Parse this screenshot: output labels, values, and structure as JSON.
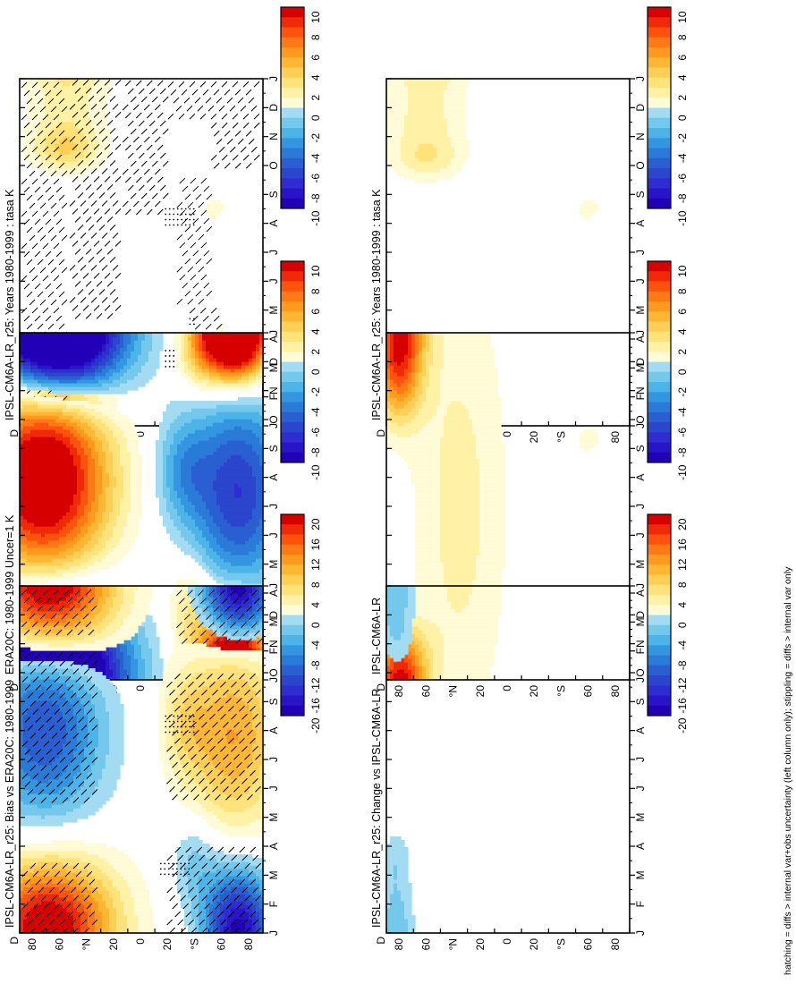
{
  "figure": {
    "footnote": "hatching = diffs > internal var+obs uncertainty (left column only); stippling = diffs > internal var only"
  },
  "colors": {
    "warm": [
      "#fffbd6",
      "#fff2a6",
      "#ffe27a",
      "#ffcf55",
      "#ffb733",
      "#ff9a1f",
      "#ff7a14",
      "#ff520d",
      "#f02a08",
      "#d60000"
    ],
    "cool": [
      "#a3dcf2",
      "#73c8ec",
      "#4db4e8",
      "#3496e0",
      "#2a7ad8",
      "#2a5fd2",
      "#2b45cc",
      "#2e2ed0",
      "#2a14c8",
      "#2200b8"
    ]
  },
  "chart_data": [
    {
      "type": "heatmap",
      "id": "p1",
      "title": "IPSL-CM6A-LR_r25: Years 1980-1999 : tasa K",
      "x_ticks": [
        "J",
        "F",
        "M",
        "A",
        "M",
        "J",
        "J",
        "A",
        "S",
        "O",
        "N",
        "D",
        "J"
      ],
      "y_ticks": [
        "80",
        "60",
        "°N",
        "20",
        "0",
        "20",
        "°S",
        "60",
        "80"
      ],
      "x_endlabel": "D",
      "colorbar_ticks": [
        "10",
        "8",
        "6",
        "4",
        "2",
        "0",
        "-2",
        "-4",
        "-6",
        "-8",
        "-10"
      ],
      "scale": 1,
      "regions": [
        {
          "lon": 0.2,
          "mon": 0.6,
          "slat": 0.13,
          "smon": 0.9,
          "v": 3.2
        },
        {
          "lon": 0.16,
          "mon": 1.6,
          "slat": 0.08,
          "smon": 0.9,
          "v": 1.6
        },
        {
          "lon": 0.19,
          "mon": 10.3,
          "slat": 0.11,
          "smon": 0.9,
          "v": 2.6
        },
        {
          "lon": 0.19,
          "mon": 9.5,
          "slat": 0.1,
          "smon": 0.5,
          "v": 2.4
        },
        {
          "lon": 0.8,
          "mon": 7.5,
          "slat": 0.035,
          "smon": 0.3,
          "v": 1.6
        },
        {
          "lon": 0.6,
          "mon": 7.6,
          "slat": 0.02,
          "smon": 0.2,
          "v": 1.0
        },
        {
          "lon": 0.83,
          "mon": 3.3,
          "slat": 0.02,
          "smon": 0.25,
          "v": 1.2
        }
      ],
      "hatch_bands": [
        {
          "m0": 0,
          "m1": 12,
          "l0": 0,
          "l1": 0.2
        },
        {
          "m0": 3.7,
          "m1": 12,
          "l0": 0.2,
          "l1": 0.42
        },
        {
          "m0": 7.3,
          "m1": 12,
          "l0": 0.42,
          "l1": 0.62
        },
        {
          "m0": 2.5,
          "m1": 4.1,
          "l0": 0.68,
          "l1": 0.84
        },
        {
          "m0": 4.2,
          "m1": 8.6,
          "l0": 0.64,
          "l1": 0.8
        },
        {
          "m0": 8.9,
          "m1": 10.6,
          "l0": 0.78,
          "l1": 0.99
        },
        {
          "m0": 10.6,
          "m1": 12,
          "l0": 0.6,
          "l1": 0.99
        }
      ],
      "stipple_bands": [
        {
          "m0": 2.0,
          "m1": 2.6,
          "l0": 0.6,
          "l1": 0.72
        },
        {
          "m0": 6.9,
          "m1": 7.5,
          "l0": 0.6,
          "l1": 0.72
        },
        {
          "m0": 3.5,
          "m1": 3.7,
          "l0": 0.7,
          "l1": 0.72
        }
      ]
    },
    {
      "type": "heatmap",
      "id": "p2",
      "title": "IPSL-CM6A-LR_r25: Years 1980-1999 : tasa K",
      "x_ticks": [
        "J",
        "F",
        "M",
        "A",
        "M",
        "J",
        "J",
        "A",
        "S",
        "O",
        "N",
        "D",
        "J"
      ],
      "y_ticks": [
        "80",
        "60",
        "°N",
        "20",
        "0",
        "20",
        "°S",
        "60",
        "80"
      ],
      "x_endlabel": "D",
      "colorbar_ticks": [
        "10",
        "8",
        "6",
        "4",
        "2",
        "0",
        "-2",
        "-4",
        "-6",
        "-8",
        "-10"
      ],
      "scale": 1,
      "regions": [
        {
          "lon": 0.17,
          "mon": 0.6,
          "slat": 0.12,
          "smon": 0.9,
          "v": 2.6
        },
        {
          "lon": 0.14,
          "mon": 1.8,
          "slat": 0.07,
          "smon": 0.9,
          "v": 1.5
        },
        {
          "lon": 0.16,
          "mon": 10.3,
          "slat": 0.12,
          "smon": 1.0,
          "v": 2.4
        },
        {
          "lon": 0.17,
          "mon": 9.2,
          "slat": 0.1,
          "smon": 0.5,
          "v": 1.8
        },
        {
          "lon": 0.83,
          "mon": 7.5,
          "slat": 0.035,
          "smon": 0.3,
          "v": 1.6
        },
        {
          "lon": 0.7,
          "mon": 3.6,
          "slat": 0.015,
          "smon": 0.15,
          "v": 1.0
        }
      ],
      "hatch_bands": [],
      "stipple_bands": []
    },
    {
      "type": "heatmap",
      "id": "p3",
      "title": "ERA20C: 1980-1999 Uncer=1 K",
      "x_ticks": [
        "J",
        "F",
        "M",
        "A",
        "M",
        "J",
        "J",
        "A",
        "S",
        "O",
        "N",
        "D",
        "J"
      ],
      "y_ticks": [
        "80",
        "60",
        "°N",
        "20",
        "0",
        "20",
        "°S",
        "60",
        "80"
      ],
      "x_endlabel": "D",
      "colorbar_ticks": [
        "10",
        "8",
        "6",
        "4",
        "2",
        "0",
        "-2",
        "-4",
        "-6",
        "-8",
        "-10"
      ],
      "scale": 1,
      "regions": [
        {
          "lon": 0.1,
          "mon": 7.0,
          "slat": 0.19,
          "smon": 2.6,
          "v": 13
        },
        {
          "lon": 0.15,
          "mon": 0.8,
          "slat": 0.2,
          "smon": 1.8,
          "v": -11
        },
        {
          "lon": 0.15,
          "mon": 11.6,
          "slat": 0.18,
          "smon": 1.3,
          "v": -10
        },
        {
          "lon": 0.88,
          "mon": 0.8,
          "slat": 0.1,
          "smon": 1.3,
          "v": 11
        },
        {
          "lon": 0.88,
          "mon": 11.6,
          "slat": 0.1,
          "smon": 1.0,
          "v": 10
        },
        {
          "lon": 0.9,
          "mon": 6.5,
          "slat": 0.14,
          "smon": 2.4,
          "v": -8
        },
        {
          "lon": 0.67,
          "mon": 7.3,
          "slat": 0.08,
          "smon": 1.3,
          "v": -3.5
        },
        {
          "lon": 0.7,
          "mon": 2.5,
          "slat": 0.07,
          "smon": 1.2,
          "v": 3
        },
        {
          "lon": 0.73,
          "mon": 11.3,
          "slat": 0.06,
          "smon": 0.9,
          "v": 2.5
        }
      ],
      "hatch_bands": [],
      "stipple_bands": []
    },
    {
      "type": "heatmap",
      "id": "p4",
      "title": "IPSL-CM6A-LR",
      "x_ticks": [
        "J",
        "F",
        "M",
        "A",
        "M",
        "J",
        "J",
        "A",
        "S",
        "O",
        "N",
        "D",
        "J"
      ],
      "y_ticks": [
        "80",
        "60",
        "°N",
        "20",
        "0",
        "20",
        "°S",
        "60",
        "80"
      ],
      "x_endlabel": "D",
      "colorbar_ticks": [
        "10",
        "8",
        "6",
        "4",
        "2",
        "0",
        "-2",
        "-4",
        "-6",
        "-8",
        "-10"
      ],
      "scale": 1,
      "regions": [
        {
          "lon": 0.3,
          "mon": 6.0,
          "slat": 0.14,
          "smon": 6.0,
          "v": 2.4
        },
        {
          "lon": 0.05,
          "mon": 10.8,
          "slat": 0.07,
          "smon": 1.3,
          "v": 8
        },
        {
          "lon": 0.06,
          "mon": 0.5,
          "slat": 0.08,
          "smon": 1.0,
          "v": 6
        },
        {
          "lon": 0.83,
          "mon": 8.3,
          "slat": 0.03,
          "smon": 0.3,
          "v": 2
        }
      ],
      "hatch_bands": [],
      "stipple_bands": []
    },
    {
      "type": "heatmap",
      "id": "p5",
      "title": "IPSL-CM6A-LR_r25: Bias vs ERA20C: 1980-1999",
      "x_ticks": [
        "J",
        "F",
        "M",
        "A",
        "M",
        "J",
        "J",
        "A",
        "S",
        "O",
        "N",
        "D",
        "J"
      ],
      "y_ticks": [
        "80",
        "60",
        "°N",
        "20",
        "0",
        "20",
        "°S",
        "60",
        "80"
      ],
      "x_endlabel": "D",
      "colorbar_ticks": [
        "20",
        "16",
        "12",
        "8",
        "4",
        "0",
        "-4",
        "-8",
        "-12",
        "-16",
        "-20"
      ],
      "scale": 2,
      "regions": [
        {
          "lon": 0.12,
          "mon": 0.9,
          "slat": 0.2,
          "smon": 1.6,
          "v": 14
        },
        {
          "lon": 0.12,
          "mon": 11.4,
          "slat": 0.18,
          "smon": 1.4,
          "v": 14
        },
        {
          "lon": 0.1,
          "mon": 7.1,
          "slat": 0.17,
          "smon": 2.4,
          "v": -14
        },
        {
          "lon": 0.9,
          "mon": 0.8,
          "slat": 0.1,
          "smon": 1.3,
          "v": -14
        },
        {
          "lon": 0.9,
          "mon": 11.5,
          "slat": 0.1,
          "smon": 1.0,
          "v": -12
        },
        {
          "lon": 0.88,
          "mon": 6.8,
          "slat": 0.14,
          "smon": 2.4,
          "v": 12
        },
        {
          "lon": 0.68,
          "mon": 7.3,
          "slat": 0.07,
          "smon": 1.3,
          "v": 5
        },
        {
          "lon": 0.72,
          "mon": 2.5,
          "slat": 0.07,
          "smon": 1.1,
          "v": -5
        }
      ],
      "hatch_bands": [
        {
          "m0": 0,
          "m1": 2.6,
          "l0": 0,
          "l1": 0.32
        },
        {
          "m0": 4.5,
          "m1": 9.7,
          "l0": 0,
          "l1": 0.32
        },
        {
          "m0": 10.3,
          "m1": 12,
          "l0": 0,
          "l1": 0.32
        },
        {
          "m0": 0,
          "m1": 3.2,
          "l0": 0.6,
          "l1": 1
        },
        {
          "m0": 4.6,
          "m1": 9.2,
          "l0": 0.6,
          "l1": 1
        },
        {
          "m0": 10.0,
          "m1": 12,
          "l0": 0.64,
          "l1": 1
        }
      ],
      "stipple_bands": [
        {
          "m0": 2.0,
          "m1": 2.4,
          "l0": 0.58,
          "l1": 0.7
        },
        {
          "m0": 6.9,
          "m1": 7.5,
          "l0": 0.6,
          "l1": 0.72
        }
      ]
    },
    {
      "type": "heatmap",
      "id": "p6",
      "title": "IPSL-CM6A-LR_r25: Change vs IPSL-CM6A-LR",
      "x_ticks": [
        "J",
        "F",
        "M",
        "A",
        "M",
        "J",
        "J",
        "A",
        "S",
        "O",
        "N",
        "D",
        "J"
      ],
      "y_ticks": [
        "80",
        "60",
        "°N",
        "20",
        "0",
        "20",
        "°S",
        "60",
        "80"
      ],
      "x_endlabel": "D",
      "colorbar_ticks": [
        "20",
        "16",
        "12",
        "8",
        "4",
        "0",
        "-4",
        "-8",
        "-12",
        "-16",
        "-20"
      ],
      "scale": 2,
      "regions": [
        {
          "lon": 0.04,
          "mon": 0.5,
          "slat": 0.05,
          "smon": 0.9,
          "v": -4.5
        },
        {
          "lon": 0.04,
          "mon": 10.7,
          "slat": 0.05,
          "smon": 1.0,
          "v": -4.5
        },
        {
          "lon": 0.04,
          "mon": 2.5,
          "slat": 0.045,
          "smon": 0.8,
          "v": -3.5
        }
      ],
      "hatch_bands": [],
      "stipple_bands": []
    }
  ]
}
